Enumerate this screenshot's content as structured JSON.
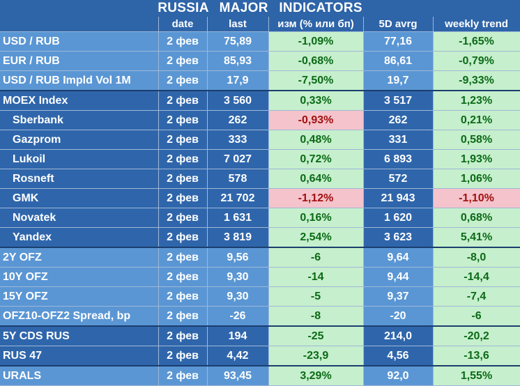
{
  "title": "RUSSIA   MAJOR   INDICATORS",
  "headers": [
    "",
    "date",
    "last",
    "изм (% или бп)",
    "5D avrg",
    "weekly trend"
  ],
  "rows": [
    {
      "name": "USD / RUB",
      "date": "2 фев",
      "last": "75,89",
      "chg": "-1,09%",
      "avg": "77,16",
      "trend": "-1,65%"
    },
    {
      "name": "EUR / RUB",
      "date": "2 фев",
      "last": "85,93",
      "chg": "-0,68%",
      "avg": "86,61",
      "trend": "-0,79%"
    },
    {
      "name": "USD / RUB Impld Vol 1M",
      "date": "2 фев",
      "last": "17,9",
      "chg": "-7,50%",
      "avg": "19,7",
      "trend": "-9,33%"
    },
    {
      "name": "MOEX Index",
      "date": "2 фев",
      "last": "3 560",
      "chg": "0,33%",
      "avg": "3 517",
      "trend": "1,23%"
    },
    {
      "name": "Sberbank",
      "date": "2 фев",
      "last": "262",
      "chg": "-0,93%",
      "avg": "262",
      "trend": "0,21%"
    },
    {
      "name": "Gazprom",
      "date": "2 фев",
      "last": "333",
      "chg": "0,48%",
      "avg": "331",
      "trend": "0,58%"
    },
    {
      "name": "Lukoil",
      "date": "2 фев",
      "last": "7 027",
      "chg": "0,72%",
      "avg": "6 893",
      "trend": "1,93%"
    },
    {
      "name": "Rosneft",
      "date": "2 фев",
      "last": "578",
      "chg": "0,64%",
      "avg": "572",
      "trend": "1,06%"
    },
    {
      "name": "GMK",
      "date": "2 фев",
      "last": "21 702",
      "chg": "-1,12%",
      "avg": "21 943",
      "trend": "-1,10%"
    },
    {
      "name": "Novatek",
      "date": "2 фев",
      "last": "1 631",
      "chg": "0,16%",
      "avg": "1 620",
      "trend": "0,68%"
    },
    {
      "name": "Yandex",
      "date": "2 фев",
      "last": "3 819",
      "chg": "2,54%",
      "avg": "3 623",
      "trend": "5,41%"
    },
    {
      "name": "2Y OFZ",
      "date": "2 фев",
      "last": "9,56",
      "chg": "-6",
      "avg": "9,64",
      "trend": "-8,0"
    },
    {
      "name": "10Y OFZ",
      "date": "2 фев",
      "last": "9,30",
      "chg": "-14",
      "avg": "9,44",
      "trend": "-14,4"
    },
    {
      "name": "15Y OFZ",
      "date": "2 фев",
      "last": "9,30",
      "chg": "-5",
      "avg": "9,37",
      "trend": "-7,4"
    },
    {
      "name": "OFZ10-OFZ2 Spread, bp",
      "date": "2 фев",
      "last": "-26",
      "chg": "-8",
      "avg": "-20",
      "trend": "-6"
    },
    {
      "name": "5Y CDS RUS",
      "date": "2 фев",
      "last": "194",
      "chg": "-25",
      "avg": "214,0",
      "trend": "-20,2"
    },
    {
      "name": "RUS 47",
      "date": "2 фев",
      "last": "4,42",
      "chg": "-23,9",
      "avg": "4,56",
      "trend": "-13,6"
    },
    {
      "name": "URALS",
      "date": "2 фев",
      "last": "93,45",
      "chg": "3,29%",
      "avg": "92,0",
      "trend": "1,55%"
    }
  ]
}
